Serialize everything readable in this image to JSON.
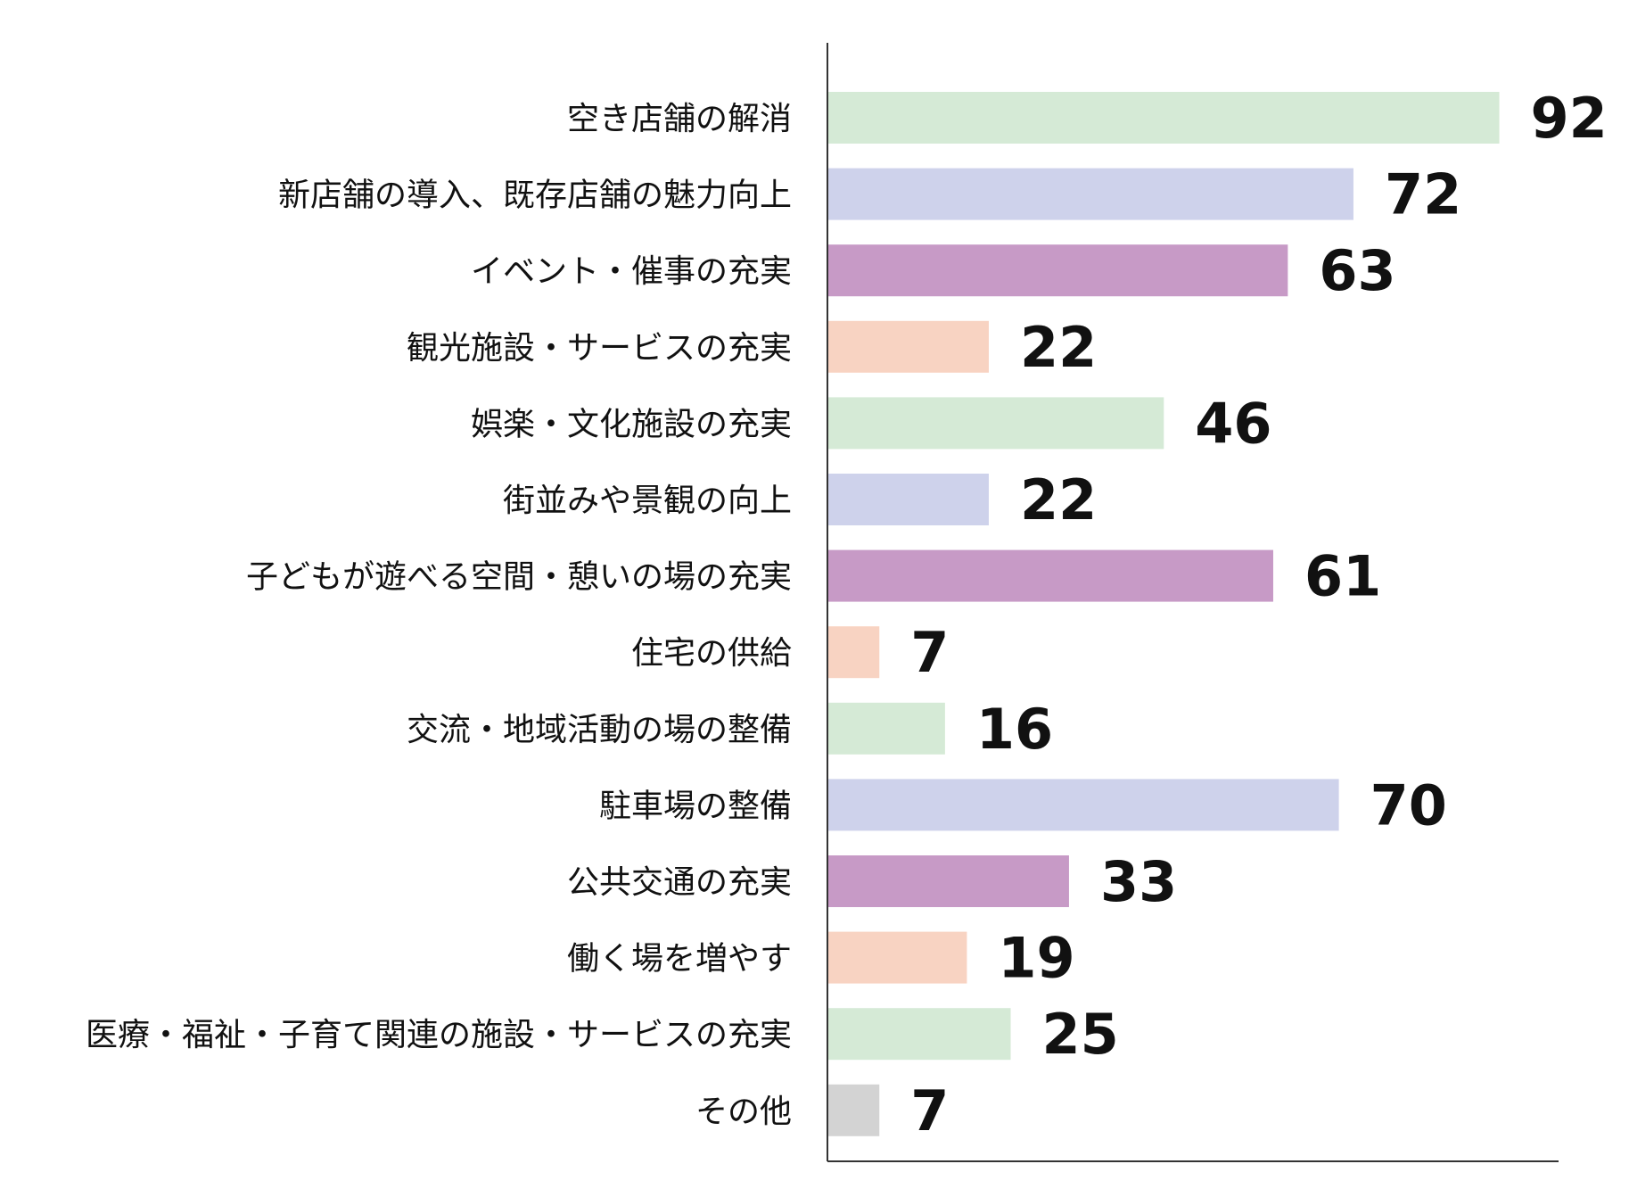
{
  "chart_data": {
    "type": "bar",
    "orientation": "horizontal",
    "title": "",
    "xlabel": "",
    "ylabel": "",
    "xlim": [
      0,
      100
    ],
    "grid": false,
    "legend": "none",
    "categories": [
      "空き店舗の解消",
      "新店舗の導入、既存店舗の魅力向上",
      "イベント・催事の充実",
      "観光施設・サービスの充実",
      "娯楽・文化施設の充実",
      "街並みや景観の向上",
      "子どもが遊べる空間・憩いの場の充実",
      "住宅の供給",
      "交流・地域活動の場の整備",
      "駐車場の整備",
      "公共交通の充実",
      "働く場を増やす",
      "医療・福祉・子育て関連の施設・サービスの充実",
      "その他"
    ],
    "values": [
      92,
      72,
      63,
      22,
      46,
      22,
      61,
      7,
      16,
      70,
      33,
      19,
      25,
      7
    ],
    "colors": [
      "#d5ead6",
      "#ced2eb",
      "#c79ac6",
      "#f8d3c2",
      "#d5ead6",
      "#ced2eb",
      "#c79ac6",
      "#f8d3c2",
      "#d5ead6",
      "#ced2eb",
      "#c79ac6",
      "#f8d3c2",
      "#d5ead6",
      "#d3d3d3"
    ]
  }
}
